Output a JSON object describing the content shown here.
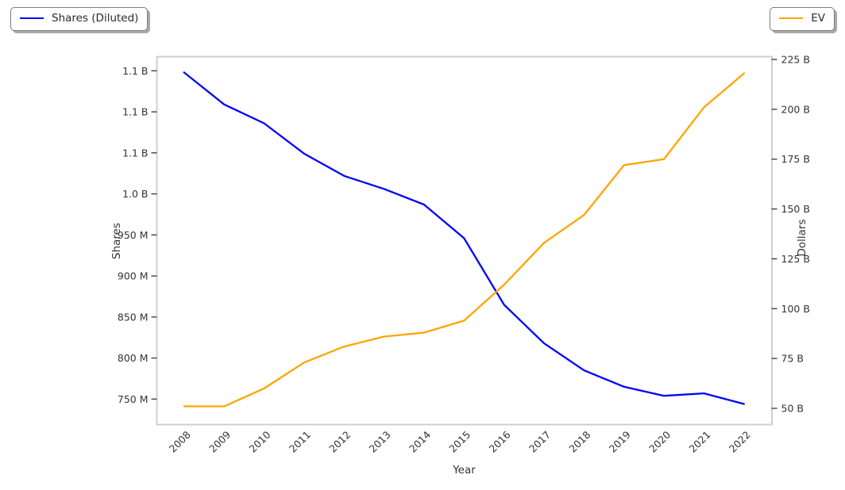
{
  "chart_data": {
    "type": "line",
    "title": "",
    "x_axis": {
      "label": "Year",
      "categories": [
        "2008",
        "2009",
        "2010",
        "2011",
        "2012",
        "2013",
        "2014",
        "2015",
        "2016",
        "2017",
        "2018",
        "2019",
        "2020",
        "2021",
        "2022"
      ]
    },
    "left_axis": {
      "label": "Shares",
      "unit": "shares",
      "tick_values_millions": [
        1150,
        1100,
        1050,
        1000,
        950,
        900,
        850,
        800,
        750
      ],
      "tick_labels": [
        "1.1 B",
        "1.1 B",
        "1.1 B",
        "1.0 B",
        "950 M",
        "900 M",
        "850 M",
        "800 M",
        "750 M"
      ]
    },
    "right_axis": {
      "label": "Dollars",
      "unit": "USD",
      "tick_values_billions": [
        225,
        200,
        175,
        150,
        125,
        100,
        75,
        50
      ],
      "tick_labels": [
        "225 B",
        "200 B",
        "175 B",
        "150 B",
        "125 B",
        "100 B",
        "75 B",
        "50 B"
      ]
    },
    "series": [
      {
        "name": "Shares (Diluted)",
        "color": "#0000ff",
        "axis": "left",
        "unit": "millions of shares",
        "values": [
          1148,
          1109,
          1086,
          1049,
          1022,
          1006,
          987,
          946,
          865,
          818,
          785,
          765,
          754,
          757,
          744
        ],
        "legend_position": "upper-left-outside"
      },
      {
        "name": "EV",
        "color": "#ffa500",
        "axis": "right",
        "unit": "billions of dollars",
        "values": [
          51,
          51,
          60,
          73,
          81,
          86,
          88,
          94,
          112,
          133,
          147,
          172,
          175,
          201,
          218
        ],
        "legend_position": "upper-right-outside"
      }
    ],
    "grid": false,
    "legend_entries": [
      "Shares (Diluted)",
      "EV"
    ]
  }
}
